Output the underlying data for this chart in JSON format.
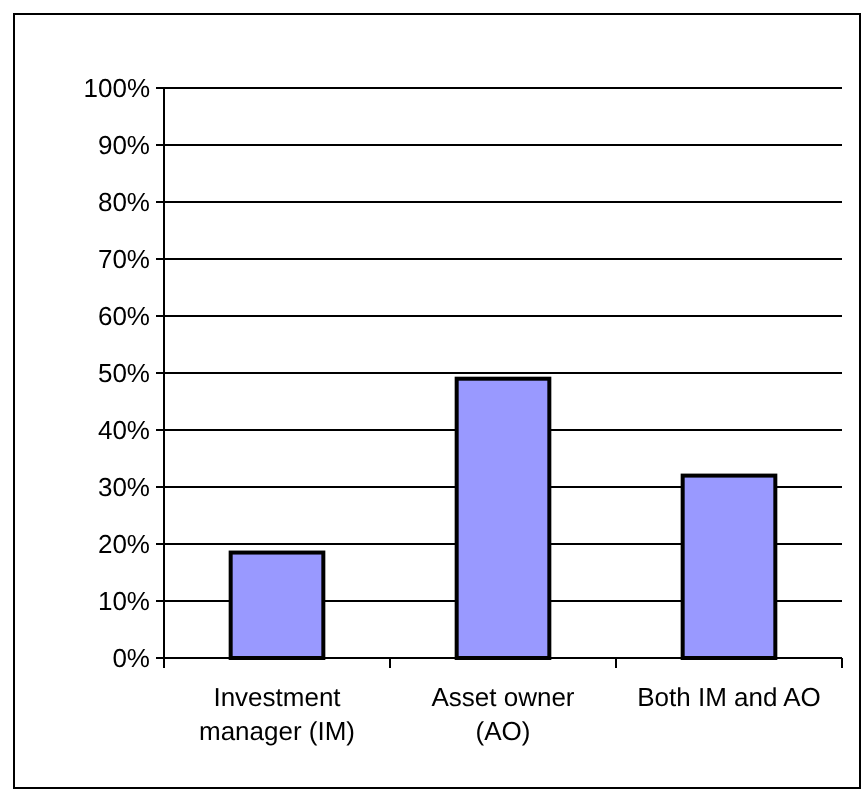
{
  "chart_data": {
    "type": "bar",
    "categories": [
      "Investment manager (IM)",
      "Asset owner (AO)",
      "Both IM and AO"
    ],
    "values": [
      18.5,
      49,
      32
    ],
    "color": "#9999ff",
    "ylim": [
      0,
      100
    ],
    "yticks": [
      {
        "value": 0,
        "label": "0%"
      },
      {
        "value": 10,
        "label": "10%"
      },
      {
        "value": 20,
        "label": "20%"
      },
      {
        "value": 30,
        "label": "30%"
      },
      {
        "value": 40,
        "label": "40%"
      },
      {
        "value": 50,
        "label": "50%"
      },
      {
        "value": 60,
        "label": "60%"
      },
      {
        "value": 70,
        "label": "70%"
      },
      {
        "value": 80,
        "label": "80%"
      },
      {
        "value": 90,
        "label": "90%"
      },
      {
        "value": 100,
        "label": "100%"
      }
    ],
    "grid": "y"
  }
}
